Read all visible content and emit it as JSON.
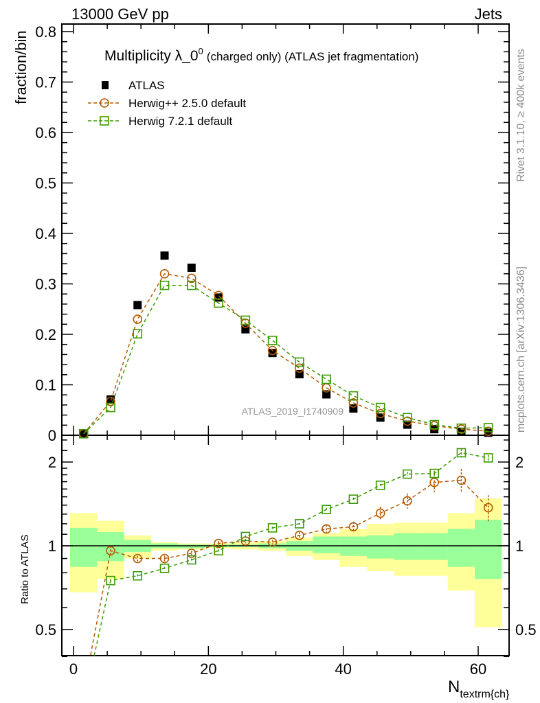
{
  "chart_data": [
    {
      "type": "scatter",
      "panel": "main",
      "title": "Multiplicity λ_0",
      "title_superscript": "0",
      "title_suffix": "(charged only) (ATLAS jet fragmentation)",
      "top_left_label": "13000 GeV pp",
      "top_right_label": "Jets",
      "ylabel": "fraction/bin",
      "ylim": [
        0,
        0.815
      ],
      "xlim": [
        -1.5,
        64
      ],
      "yticks": [
        "0",
        "0.1",
        "0.2",
        "0.3",
        "0.4",
        "0.5",
        "0.6",
        "0.7",
        "0.8"
      ],
      "ytick_values": [
        0,
        0.1,
        0.2,
        0.3,
        0.4,
        0.5,
        0.6,
        0.7,
        0.8
      ],
      "legend_placement": "top-left",
      "watermark": "ATLAS_2019_I1740909",
      "side_label_top": "Rivet 3.1.10, ≥ 400k events",
      "side_label_bottom": "mcplots.cern.ch [arXiv:1306.3436]",
      "x": [
        1.5,
        5.5,
        9.5,
        13.5,
        17.5,
        21.5,
        25.5,
        29.5,
        33.5,
        37.5,
        41.5,
        45.5,
        49.5,
        53.5,
        57.5,
        61.5
      ],
      "series": [
        {
          "name": "ATLAS",
          "marker": "filled-square",
          "color": "#000000",
          "values": [
            0.004,
            0.071,
            0.258,
            0.356,
            0.332,
            0.273,
            0.21,
            0.163,
            0.121,
            0.081,
            0.053,
            0.035,
            0.021,
            0.012,
            0.007,
            0.005
          ]
        },
        {
          "name": "Herwig++ 2.5.0 default",
          "marker": "open-circle",
          "color": "#b35900",
          "values": [
            0.003,
            0.067,
            0.23,
            0.32,
            0.311,
            0.277,
            0.222,
            0.168,
            0.133,
            0.094,
            0.064,
            0.043,
            0.028,
            0.019,
            0.012,
            0.008
          ]
        },
        {
          "name": "Herwig 7.2.1 default",
          "marker": "open-square",
          "color": "#3a9a00",
          "values": [
            0.003,
            0.055,
            0.201,
            0.297,
            0.297,
            0.262,
            0.228,
            0.188,
            0.145,
            0.111,
            0.078,
            0.055,
            0.035,
            0.021,
            0.014,
            0.015
          ]
        }
      ]
    },
    {
      "type": "line",
      "panel": "ratio",
      "ylabel": "Ratio to ATLAS",
      "xlabel": "N",
      "xlabel_subscript": "textrm{ch}",
      "yscale": "log",
      "ylim": [
        0.4,
        2.47
      ],
      "yticks": [
        "0.5",
        "1",
        "2"
      ],
      "ytick_values": [
        0.5,
        1,
        2
      ],
      "xticks": [
        "0",
        "20",
        "40",
        "60"
      ],
      "xtick_values": [
        0,
        20,
        40,
        60
      ],
      "bin_edges": [
        -0.5,
        3.5,
        7.5,
        11.5,
        15.5,
        19.5,
        23.5,
        27.5,
        31.5,
        35.5,
        39.5,
        43.5,
        47.5,
        51.5,
        55.5,
        59.5,
        63.5
      ],
      "band_total": {
        "color": "#ffff99",
        "upper": [
          1.31,
          1.23,
          1.09,
          1.03,
          1.02,
          1.02,
          1.03,
          1.04,
          1.07,
          1.11,
          1.15,
          1.2,
          1.21,
          1.21,
          1.31,
          1.48
        ],
        "lower": [
          0.68,
          0.76,
          0.9,
          0.96,
          0.97,
          0.98,
          0.97,
          0.96,
          0.92,
          0.89,
          0.84,
          0.81,
          0.78,
          0.78,
          0.69,
          0.51
        ]
      },
      "band_stat": {
        "color": "#99ff99",
        "upper": [
          1.16,
          1.12,
          1.05,
          1.02,
          1.01,
          1.01,
          1.01,
          1.02,
          1.04,
          1.08,
          1.08,
          1.09,
          1.11,
          1.11,
          1.15,
          1.24
        ],
        "lower": [
          0.84,
          0.88,
          0.95,
          0.98,
          0.98,
          0.99,
          0.99,
          0.98,
          0.96,
          0.94,
          0.92,
          0.9,
          0.89,
          0.89,
          0.84,
          0.76
        ]
      },
      "x": [
        1.5,
        5.5,
        9.5,
        13.5,
        17.5,
        21.5,
        25.5,
        29.5,
        33.5,
        37.5,
        41.5,
        45.5,
        49.5,
        53.5,
        57.5,
        61.5
      ],
      "series": [
        {
          "name": "Herwig++ 2.5.0 default",
          "color": "#b35900",
          "values": [
            0.3,
            0.96,
            0.9,
            0.9,
            0.94,
            1.02,
            1.04,
            1.03,
            1.09,
            1.15,
            1.17,
            1.31,
            1.45,
            1.69,
            1.72,
            1.37
          ],
          "errors": [
            0,
            0.04,
            0.02,
            0.02,
            0.02,
            0.02,
            0.02,
            0.02,
            0.03,
            0.04,
            0.05,
            0.07,
            0.09,
            0.13,
            0.17,
            0.15
          ]
        },
        {
          "name": "Herwig 7.2.1 default",
          "color": "#3a9a00",
          "values": [
            0.27,
            0.75,
            0.78,
            0.83,
            0.89,
            0.96,
            1.08,
            1.16,
            1.2,
            1.35,
            1.47,
            1.65,
            1.81,
            1.82,
            2.16,
            2.07
          ],
          "errors": [
            0,
            0.01,
            0.01,
            0.01,
            0.01,
            0.01,
            0.01,
            0.01,
            0.01,
            0.02,
            0.02,
            0.02,
            0.03,
            0.04,
            0.07,
            0.05
          ]
        }
      ]
    }
  ]
}
